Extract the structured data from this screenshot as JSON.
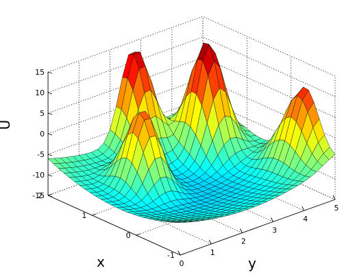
{
  "chart_data": {
    "type": "surface",
    "xlabel": "x",
    "ylabel": "y",
    "zlabel": "U",
    "xlim": [
      -1,
      2
    ],
    "ylim": [
      0,
      5
    ],
    "zlim": [
      -15,
      15
    ],
    "x_ticks": [
      "-1",
      "0",
      "1",
      "2"
    ],
    "y_ticks": [
      "0",
      "1",
      "2",
      "3",
      "4",
      "5"
    ],
    "z_ticks": [
      "-15",
      "-10",
      "-5",
      "0",
      "5",
      "10",
      "15"
    ],
    "grid": true,
    "colormap": "jet",
    "x_range": [
      -1,
      2
    ],
    "y_range": [
      0,
      5
    ],
    "grid_resolution": 25,
    "features": [
      {
        "x": 1.9,
        "y": 2.7,
        "z": 13.0
      },
      {
        "x": 1.2,
        "y": 4.0,
        "z": 16.0
      },
      {
        "x": 0.9,
        "y": 1.5,
        "z": 9.5
      },
      {
        "x": -0.05,
        "y": 4.65,
        "z": -6.5
      },
      {
        "x": -0.35,
        "y": 5.0,
        "z": 5.0
      }
    ]
  }
}
